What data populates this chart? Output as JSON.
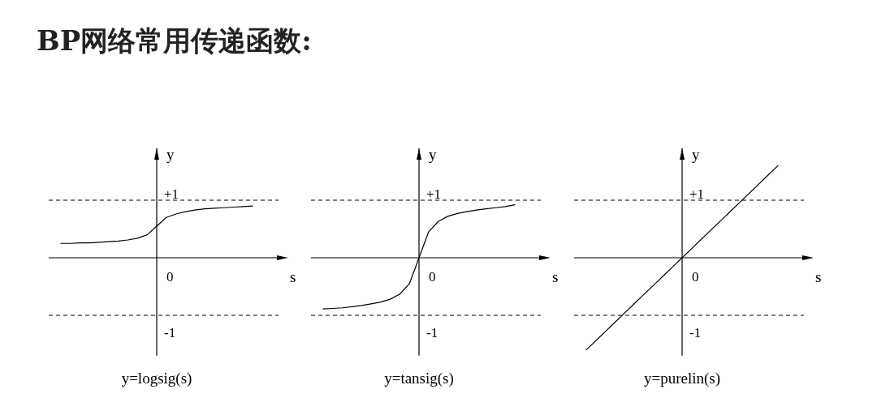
{
  "chart_data": [
    {
      "type": "line",
      "title": "y=logsig(s)",
      "subtitle": "BP网络常用传递函数:",
      "annotations": [
        "0"
      ],
      "xlabel": "s",
      "ylabel": "y",
      "categories": [
        null,
        null,
        null,
        null,
        null,
        null,
        null,
        null,
        null,
        null,
        null,
        null,
        null,
        null,
        null,
        null,
        null,
        null,
        null,
        null,
        null
      ],
      "series": [
        {
          "color": "#000000",
          "values": [
            0.25,
            0.25,
            0.26,
            0.26,
            0.27,
            0.28,
            0.29,
            0.31,
            0.34,
            0.4,
            0.55,
            0.7,
            0.76,
            0.8,
            0.83,
            0.85,
            0.86,
            0.87,
            0.88,
            0.89,
            0.9
          ]
        }
      ],
      "ylim": [
        -1.7,
        1.9
      ],
      "ref_lines": [
        {
          "axis": "y",
          "value": 1,
          "label": "+1",
          "line_style": "dashed"
        },
        {
          "axis": "y",
          "value": -1,
          "label": "-1",
          "line_style": "dashed"
        }
      ]
    },
    {
      "type": "line",
      "title": "y=tansig(s)",
      "annotations": [
        "0"
      ],
      "xlabel": "s",
      "ylabel": "y",
      "categories": [
        null,
        null,
        null,
        null,
        null,
        null,
        null,
        null,
        null,
        null,
        null,
        null,
        null,
        null,
        null,
        null,
        null,
        null,
        null,
        null,
        null
      ],
      "series": [
        {
          "color": "#000000",
          "values": [
            -0.89,
            -0.88,
            -0.87,
            -0.85,
            -0.83,
            -0.8,
            -0.77,
            -0.72,
            -0.63,
            -0.45,
            0,
            0.45,
            0.63,
            0.72,
            0.77,
            0.8,
            0.83,
            0.85,
            0.87,
            0.89,
            0.92
          ]
        }
      ],
      "ylim": [
        -1.7,
        1.9
      ],
      "ref_lines": [
        {
          "axis": "y",
          "value": 1,
          "label": "+1",
          "line_style": "dashed"
        },
        {
          "axis": "y",
          "value": -1,
          "label": "-1",
          "line_style": "dashed"
        }
      ]
    },
    {
      "type": "line",
      "title": "y=purelin(s)",
      "annotations": [
        "0"
      ],
      "xlabel": "s",
      "ylabel": "y",
      "categories": [
        null,
        null,
        null,
        null,
        null,
        null,
        null,
        null,
        null,
        null,
        null,
        null,
        null,
        null,
        null,
        null,
        null,
        null,
        null,
        null,
        null
      ],
      "series": [
        {
          "color": "#000000",
          "values": [
            -1.6,
            -1.44,
            -1.28,
            -1.12,
            -0.96,
            -0.8,
            -0.64,
            -0.48,
            -0.32,
            -0.16,
            0,
            0.16,
            0.32,
            0.48,
            0.64,
            0.8,
            0.96,
            1.12,
            1.28,
            1.44,
            1.6
          ]
        }
      ],
      "ylim": [
        -1.7,
        1.9
      ],
      "ref_lines": [
        {
          "axis": "y",
          "value": 1,
          "label": "+1",
          "line_style": "dashed"
        },
        {
          "axis": "y",
          "value": -1,
          "label": "-1",
          "line_style": "dashed"
        }
      ]
    }
  ]
}
